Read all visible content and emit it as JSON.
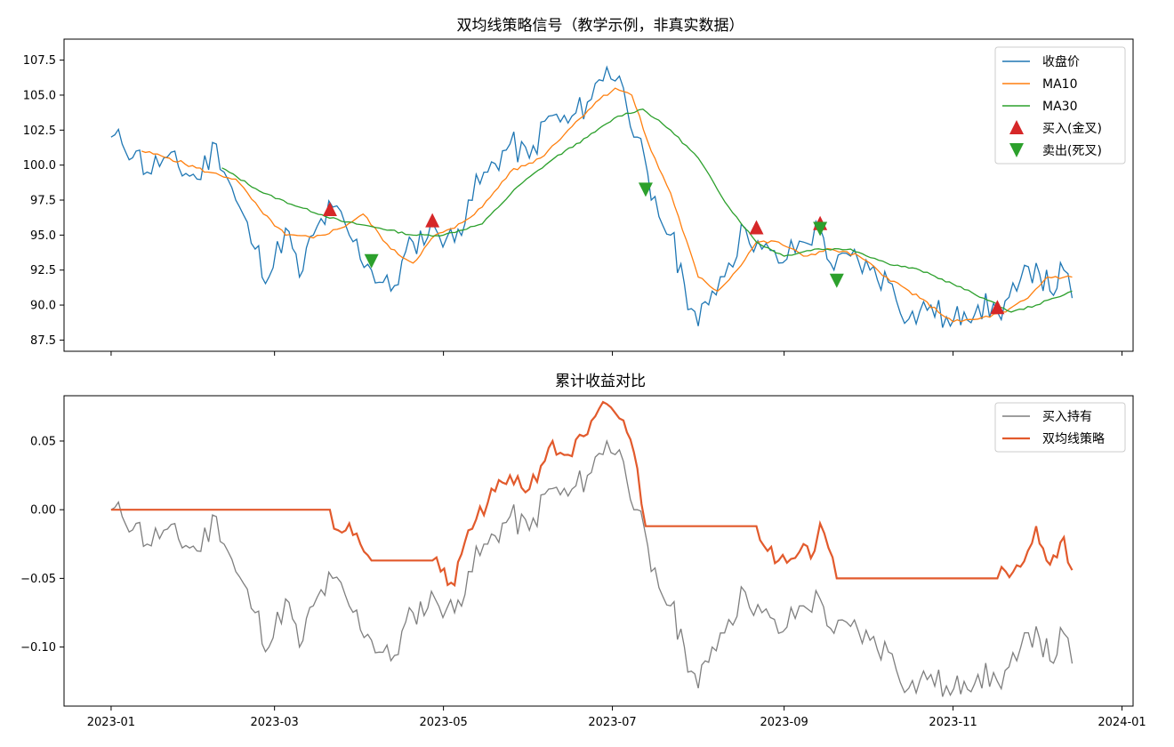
{
  "chart_data": [
    {
      "type": "line",
      "title": "双均线策略信号（教学示例，非真实数据）",
      "ylim": [
        86.7,
        109.0
      ],
      "yticks": [
        "87.5",
        "90.0",
        "92.5",
        "95.0",
        "97.5",
        "100.0",
        "102.5",
        "105.0",
        "107.5"
      ],
      "ytick_values": [
        87.5,
        90.0,
        92.5,
        95.0,
        97.5,
        100.0,
        102.5,
        105.0,
        107.5
      ],
      "legend_position": "top-right",
      "colors": {
        "close": "#1f77b4",
        "ma10": "#ff7f0e",
        "ma30": "#2ca02c",
        "buy": "#d62728",
        "sell": "#2ca02c"
      },
      "series_names": {
        "close": "收盘价",
        "ma10": "MA10",
        "ma30": "MA30",
        "buy": "买入(金叉)",
        "sell": "卖出(死叉)"
      },
      "close_anchors": [
        [
          "2023-01-01",
          102.0
        ],
        [
          "2023-01-05",
          101.5
        ],
        [
          "2023-01-10",
          101.0
        ],
        [
          "2023-01-14",
          99.5
        ],
        [
          "2023-01-20",
          100.5
        ],
        [
          "2023-02-01",
          99.0
        ],
        [
          "2023-02-08",
          101.5
        ],
        [
          "2023-02-15",
          97.5
        ],
        [
          "2023-02-22",
          94.0
        ],
        [
          "2023-02-27",
          92.0
        ],
        [
          "2023-03-05",
          95.5
        ],
        [
          "2023-03-10",
          92.0
        ],
        [
          "2023-03-15",
          95.0
        ],
        [
          "2023-03-22",
          97.0
        ],
        [
          "2023-03-28",
          95.0
        ],
        [
          "2023-04-05",
          92.5
        ],
        [
          "2023-04-12",
          91.0
        ],
        [
          "2023-04-20",
          94.5
        ],
        [
          "2023-04-28",
          95.5
        ],
        [
          "2023-05-05",
          94.5
        ],
        [
          "2023-05-10",
          97.5
        ],
        [
          "2023-05-17",
          99.5
        ],
        [
          "2023-05-25",
          101.5
        ],
        [
          "2023-06-01",
          100.5
        ],
        [
          "2023-06-08",
          103.5
        ],
        [
          "2023-06-15",
          103.0
        ],
        [
          "2023-06-22",
          104.5
        ],
        [
          "2023-06-29",
          107.0
        ],
        [
          "2023-07-05",
          105.5
        ],
        [
          "2023-07-10",
          102.0
        ],
        [
          "2023-07-15",
          97.5
        ],
        [
          "2023-07-22",
          95.0
        ],
        [
          "2023-07-27",
          91.5
        ],
        [
          "2023-08-01",
          88.5
        ],
        [
          "2023-08-06",
          91.0
        ],
        [
          "2023-08-12",
          93.0
        ],
        [
          "2023-08-18",
          95.5
        ],
        [
          "2023-08-24",
          94.0
        ],
        [
          "2023-08-30",
          93.0
        ],
        [
          "2023-09-08",
          94.5
        ],
        [
          "2023-09-14",
          95.5
        ],
        [
          "2023-09-19",
          92.5
        ],
        [
          "2023-09-25",
          93.5
        ],
        [
          "2023-10-02",
          92.5
        ],
        [
          "2023-10-10",
          91.5
        ],
        [
          "2023-10-16",
          89.0
        ],
        [
          "2023-10-24",
          90.0
        ],
        [
          "2023-10-31",
          88.5
        ],
        [
          "2023-11-05",
          89.5
        ],
        [
          "2023-11-10",
          90.0
        ],
        [
          "2023-11-17",
          89.5
        ],
        [
          "2023-11-24",
          91.0
        ],
        [
          "2023-12-01",
          93.0
        ],
        [
          "2023-12-06",
          91.0
        ],
        [
          "2023-12-11",
          92.5
        ],
        [
          "2023-12-14",
          90.5
        ]
      ],
      "ma10_anchors": [
        [
          "2023-01-12",
          101.0
        ],
        [
          "2023-01-22",
          100.5
        ],
        [
          "2023-02-05",
          99.5
        ],
        [
          "2023-02-15",
          99.0
        ],
        [
          "2023-02-25",
          96.5
        ],
        [
          "2023-03-05",
          95.0
        ],
        [
          "2023-03-15",
          94.8
        ],
        [
          "2023-03-25",
          95.5
        ],
        [
          "2023-04-02",
          96.5
        ],
        [
          "2023-04-12",
          94.0
        ],
        [
          "2023-04-20",
          93.0
        ],
        [
          "2023-04-28",
          95.0
        ],
        [
          "2023-05-05",
          95.5
        ],
        [
          "2023-05-15",
          97.0
        ],
        [
          "2023-05-25",
          99.5
        ],
        [
          "2023-06-05",
          100.5
        ],
        [
          "2023-06-15",
          102.5
        ],
        [
          "2023-06-25",
          104.5
        ],
        [
          "2023-07-02",
          105.5
        ],
        [
          "2023-07-08",
          105.0
        ],
        [
          "2023-07-15",
          101.0
        ],
        [
          "2023-07-22",
          98.0
        ],
        [
          "2023-08-01",
          92.0
        ],
        [
          "2023-08-08",
          91.0
        ],
        [
          "2023-08-15",
          92.5
        ],
        [
          "2023-08-22",
          94.5
        ],
        [
          "2023-08-30",
          94.5
        ],
        [
          "2023-09-08",
          93.5
        ],
        [
          "2023-09-18",
          94.0
        ],
        [
          "2023-09-28",
          93.5
        ],
        [
          "2023-10-08",
          92.0
        ],
        [
          "2023-10-20",
          90.5
        ],
        [
          "2023-11-01",
          88.8
        ],
        [
          "2023-11-10",
          89.0
        ],
        [
          "2023-11-20",
          89.5
        ],
        [
          "2023-11-28",
          90.5
        ],
        [
          "2023-12-05",
          92.0
        ],
        [
          "2023-12-14",
          92.0
        ]
      ],
      "ma30_anchors": [
        [
          "2023-02-10",
          99.8
        ],
        [
          "2023-02-25",
          98.0
        ],
        [
          "2023-03-10",
          97.0
        ],
        [
          "2023-03-25",
          96.0
        ],
        [
          "2023-04-08",
          95.5
        ],
        [
          "2023-04-20",
          95.0
        ],
        [
          "2023-05-01",
          95.0
        ],
        [
          "2023-05-15",
          95.8
        ],
        [
          "2023-05-28",
          98.5
        ],
        [
          "2023-06-10",
          100.5
        ],
        [
          "2023-06-22",
          102.0
        ],
        [
          "2023-07-03",
          103.5
        ],
        [
          "2023-07-12",
          104.0
        ],
        [
          "2023-07-22",
          102.5
        ],
        [
          "2023-08-01",
          100.5
        ],
        [
          "2023-08-12",
          97.0
        ],
        [
          "2023-08-22",
          94.5
        ],
        [
          "2023-09-01",
          93.5
        ],
        [
          "2023-09-12",
          94.0
        ],
        [
          "2023-09-25",
          94.0
        ],
        [
          "2023-10-08",
          93.0
        ],
        [
          "2023-10-20",
          92.5
        ],
        [
          "2023-11-01",
          91.5
        ],
        [
          "2023-11-12",
          90.5
        ],
        [
          "2023-11-22",
          89.5
        ],
        [
          "2023-12-01",
          90.0
        ],
        [
          "2023-12-14",
          91.0
        ]
      ],
      "buy_signals": [
        [
          "2023-03-21",
          96.8
        ],
        [
          "2023-04-27",
          96.0
        ],
        [
          "2023-08-22",
          95.5
        ],
        [
          "2023-09-14",
          95.8
        ],
        [
          "2023-11-17",
          89.8
        ]
      ],
      "sell_signals": [
        [
          "2023-04-05",
          93.2
        ],
        [
          "2023-07-13",
          98.3
        ],
        [
          "2023-09-14",
          95.5
        ],
        [
          "2023-09-20",
          91.8
        ]
      ]
    },
    {
      "type": "line",
      "title": "累计收益对比",
      "ylim": [
        -0.143,
        0.083
      ],
      "yticks": [
        "−0.10",
        "−0.05",
        "0.00",
        "0.05"
      ],
      "ytick_values": [
        -0.1,
        -0.05,
        0.0,
        0.05
      ],
      "legend_position": "top-right",
      "colors": {
        "hold": "#7f7f7f",
        "strategy": "#e25a2c"
      },
      "series_names": {
        "hold": "买入持有",
        "strategy": "双均线策略"
      },
      "hold_anchors": [
        [
          "2023-01-01",
          0.0
        ],
        [
          "2023-01-05",
          -0.005
        ],
        [
          "2023-01-10",
          -0.01
        ],
        [
          "2023-01-14",
          -0.025
        ],
        [
          "2023-01-20",
          -0.015
        ],
        [
          "2023-02-01",
          -0.03
        ],
        [
          "2023-02-08",
          -0.005
        ],
        [
          "2023-02-15",
          -0.045
        ],
        [
          "2023-02-22",
          -0.075
        ],
        [
          "2023-02-27",
          -0.1
        ],
        [
          "2023-03-05",
          -0.065
        ],
        [
          "2023-03-10",
          -0.1
        ],
        [
          "2023-03-15",
          -0.07
        ],
        [
          "2023-03-22",
          -0.05
        ],
        [
          "2023-03-28",
          -0.07
        ],
        [
          "2023-04-05",
          -0.095
        ],
        [
          "2023-04-12",
          -0.11
        ],
        [
          "2023-04-20",
          -0.075
        ],
        [
          "2023-04-28",
          -0.065
        ],
        [
          "2023-05-05",
          -0.075
        ],
        [
          "2023-05-10",
          -0.045
        ],
        [
          "2023-05-17",
          -0.025
        ],
        [
          "2023-05-25",
          -0.005
        ],
        [
          "2023-06-01",
          -0.015
        ],
        [
          "2023-06-08",
          0.015
        ],
        [
          "2023-06-15",
          0.01
        ],
        [
          "2023-06-22",
          0.025
        ],
        [
          "2023-06-29",
          0.05
        ],
        [
          "2023-07-05",
          0.035
        ],
        [
          "2023-07-10",
          0.0
        ],
        [
          "2023-07-15",
          -0.045
        ],
        [
          "2023-07-22",
          -0.07
        ],
        [
          "2023-07-27",
          -0.1
        ],
        [
          "2023-08-01",
          -0.13
        ],
        [
          "2023-08-06",
          -0.1
        ],
        [
          "2023-08-12",
          -0.08
        ],
        [
          "2023-08-18",
          -0.06
        ],
        [
          "2023-08-24",
          -0.075
        ],
        [
          "2023-08-30",
          -0.09
        ],
        [
          "2023-09-08",
          -0.07
        ],
        [
          "2023-09-14",
          -0.065
        ],
        [
          "2023-09-19",
          -0.09
        ],
        [
          "2023-09-25",
          -0.085
        ],
        [
          "2023-10-02",
          -0.095
        ],
        [
          "2023-10-10",
          -0.105
        ],
        [
          "2023-10-16",
          -0.13
        ],
        [
          "2023-10-24",
          -0.12
        ],
        [
          "2023-10-31",
          -0.135
        ],
        [
          "2023-11-05",
          -0.125
        ],
        [
          "2023-11-10",
          -0.12
        ],
        [
          "2023-11-17",
          -0.125
        ],
        [
          "2023-11-24",
          -0.11
        ],
        [
          "2023-12-01",
          -0.085
        ],
        [
          "2023-12-06",
          -0.11
        ],
        [
          "2023-12-11",
          -0.09
        ],
        [
          "2023-12-14",
          -0.112
        ]
      ],
      "strategy_anchors": [
        [
          "2023-01-01",
          0.0
        ],
        [
          "2023-03-21",
          0.0
        ],
        [
          "2023-03-24",
          -0.015
        ],
        [
          "2023-03-28",
          -0.01
        ],
        [
          "2023-04-01",
          -0.025
        ],
        [
          "2023-04-05",
          -0.037
        ],
        [
          "2023-04-27",
          -0.037
        ],
        [
          "2023-04-30",
          -0.045
        ],
        [
          "2023-05-05",
          -0.055
        ],
        [
          "2023-05-10",
          -0.015
        ],
        [
          "2023-05-17",
          0.005
        ],
        [
          "2023-05-25",
          0.025
        ],
        [
          "2023-06-01",
          0.015
        ],
        [
          "2023-06-08",
          0.045
        ],
        [
          "2023-06-15",
          0.04
        ],
        [
          "2023-06-22",
          0.055
        ],
        [
          "2023-06-29",
          0.077
        ],
        [
          "2023-07-05",
          0.065
        ],
        [
          "2023-07-10",
          0.03
        ],
        [
          "2023-07-13",
          -0.012
        ],
        [
          "2023-08-22",
          -0.012
        ],
        [
          "2023-08-26",
          -0.03
        ],
        [
          "2023-08-30",
          -0.037
        ],
        [
          "2023-09-08",
          -0.025
        ],
        [
          "2023-09-12",
          -0.03
        ],
        [
          "2023-09-14",
          -0.01
        ],
        [
          "2023-09-20",
          -0.05
        ],
        [
          "2023-11-17",
          -0.05
        ],
        [
          "2023-11-20",
          -0.045
        ],
        [
          "2023-11-28",
          -0.03
        ],
        [
          "2023-12-01",
          -0.012
        ],
        [
          "2023-12-06",
          -0.04
        ],
        [
          "2023-12-11",
          -0.02
        ],
        [
          "2023-12-14",
          -0.044
        ]
      ]
    }
  ],
  "x_axis": {
    "range": [
      "2022-12-15",
      "2024-01-05"
    ],
    "ticks": [
      [
        "2023-01-01",
        "2023-01"
      ],
      [
        "2023-03-01",
        "2023-03"
      ],
      [
        "2023-05-01",
        "2023-05"
      ],
      [
        "2023-07-01",
        "2023-07"
      ],
      [
        "2023-09-01",
        "2023-09"
      ],
      [
        "2023-11-01",
        "2023-11"
      ],
      [
        "2024-01-01",
        "2024-01"
      ]
    ]
  }
}
